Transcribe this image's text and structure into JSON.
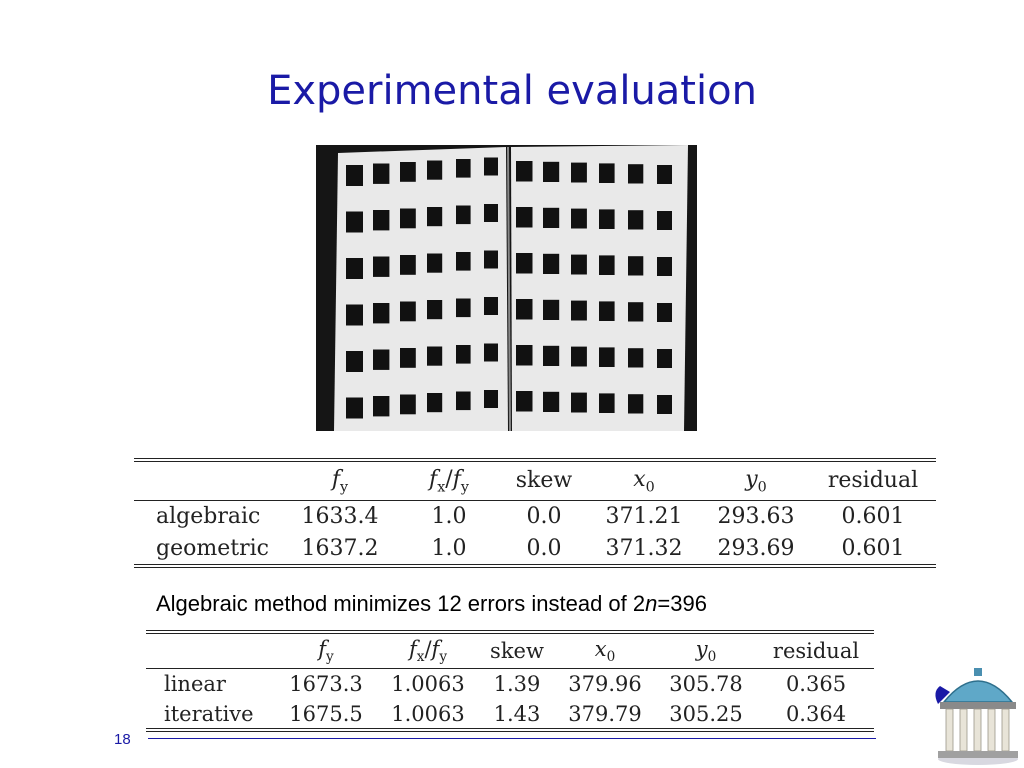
{
  "slide": {
    "title": "Experimental evaluation",
    "page_number": "18"
  },
  "photo": {
    "icon": "calibration-grid-photo",
    "background_color": "#151515",
    "board_color": "#e9e9e9",
    "square_color": "#111111"
  },
  "table1": {
    "headers": {
      "col0": "",
      "fy": {
        "base": "f",
        "sub": "y"
      },
      "fxfy": {
        "base1": "f",
        "sub1": "x",
        "sep": "/",
        "base2": "f",
        "sub2": "y"
      },
      "skew": "skew",
      "x0": {
        "base": "x",
        "sub": "0"
      },
      "y0": {
        "base": "y",
        "sub": "0"
      },
      "residual": "residual"
    },
    "rows": [
      {
        "label": "algebraic",
        "fy": "1633.4",
        "fxfy": "1.0",
        "skew": "0.0",
        "x0": "371.21",
        "y0": "293.63",
        "residual": "0.601"
      },
      {
        "label": "geometric",
        "fy": "1637.2",
        "fxfy": "1.0",
        "skew": "0.0",
        "x0": "371.32",
        "y0": "293.69",
        "residual": "0.601"
      }
    ]
  },
  "caption": {
    "prefix": "Algebraic method minimizes 12 errors instead of 2",
    "italic": "n",
    "suffix": "=396"
  },
  "table2": {
    "headers": {
      "col0": "",
      "fy": {
        "base": "f",
        "sub": "y"
      },
      "fxfy": {
        "base1": "f",
        "sub1": "x",
        "sep": "/",
        "base2": "f",
        "sub2": "y"
      },
      "skew": "skew",
      "x0": {
        "base": "x",
        "sub": "0"
      },
      "y0": {
        "base": "y",
        "sub": "0"
      },
      "residual": "residual"
    },
    "rows": [
      {
        "label": "linear",
        "fy": "1673.3",
        "fxfy": "1.0063",
        "skew": "1.39",
        "x0": "379.96",
        "y0": "305.78",
        "residual": "0.365"
      },
      {
        "label": "iterative",
        "fy": "1675.5",
        "fxfy": "1.0063",
        "skew": "1.43",
        "x0": "379.79",
        "y0": "305.25",
        "residual": "0.364"
      }
    ]
  },
  "logo": {
    "icon": "old-well-logo",
    "dome_color": "#5fa8c8",
    "column_color": "#e8e4d8",
    "accent_color": "#1a1aa6"
  }
}
